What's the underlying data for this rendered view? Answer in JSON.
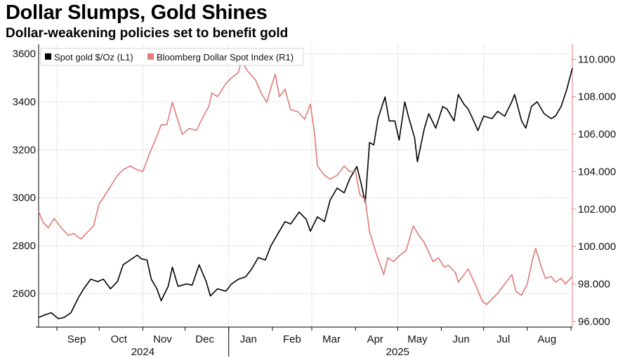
{
  "header": {
    "title": "Dollar Slumps, Gold Shines",
    "subtitle": "Dollar-weakening policies set to benefit gold"
  },
  "chart_data": {
    "type": "line",
    "title": "Dollar Slumps, Gold Shines",
    "subtitle": "Dollar-weakening policies set to benefit gold",
    "grid": true,
    "legend_placement": "top-left",
    "x_axis": {
      "months": [
        {
          "label": "Sep",
          "date": "2024-09-15"
        },
        {
          "label": "Oct",
          "date": "2024-10-15"
        },
        {
          "label": "Nov",
          "date": "2024-11-15"
        },
        {
          "label": "Dec",
          "date": "2024-12-15"
        },
        {
          "label": "Jan",
          "date": "2025-01-15"
        },
        {
          "label": "Feb",
          "date": "2025-02-15"
        },
        {
          "label": "Mar",
          "date": "2025-03-15"
        },
        {
          "label": "Apr",
          "date": "2025-04-15"
        },
        {
          "label": "May",
          "date": "2025-05-15"
        },
        {
          "label": "Jun",
          "date": "2025-06-15"
        },
        {
          "label": "Jul",
          "date": "2025-07-15"
        },
        {
          "label": "Aug",
          "date": "2025-08-15"
        }
      ],
      "years": [
        {
          "label": "2024",
          "date": "2024-11-01"
        },
        {
          "label": "2025",
          "date": "2025-05-01"
        }
      ],
      "range": [
        "2024-08-19",
        "2025-09-02"
      ]
    },
    "y_left": {
      "ticks": [
        "2600",
        "2800",
        "3000",
        "3200",
        "3400",
        "3600"
      ],
      "range": [
        2460,
        3640
      ]
    },
    "y_right": {
      "ticks": [
        "96.000",
        "98.000",
        "100.000",
        "102.000",
        "104.000",
        "106.000",
        "108.000",
        "110.000"
      ],
      "range": [
        95.7,
        110.8
      ]
    },
    "series": [
      {
        "name": "Spot gold $/Oz (L1)",
        "axis": "left",
        "color": "#000000",
        "points": [
          [
            "2024-08-19",
            2500
          ],
          [
            "2024-08-23",
            2510
          ],
          [
            "2024-08-28",
            2520
          ],
          [
            "2024-09-02",
            2495
          ],
          [
            "2024-09-06",
            2500
          ],
          [
            "2024-09-11",
            2520
          ],
          [
            "2024-09-16",
            2580
          ],
          [
            "2024-09-20",
            2620
          ],
          [
            "2024-09-25",
            2660
          ],
          [
            "2024-09-30",
            2650
          ],
          [
            "2024-10-04",
            2660
          ],
          [
            "2024-10-09",
            2620
          ],
          [
            "2024-10-14",
            2650
          ],
          [
            "2024-10-18",
            2720
          ],
          [
            "2024-10-23",
            2740
          ],
          [
            "2024-10-28",
            2760
          ],
          [
            "2024-10-31",
            2745
          ],
          [
            "2024-11-04",
            2740
          ],
          [
            "2024-11-07",
            2660
          ],
          [
            "2024-11-11",
            2620
          ],
          [
            "2024-11-14",
            2570
          ],
          [
            "2024-11-19",
            2630
          ],
          [
            "2024-11-22",
            2710
          ],
          [
            "2024-11-26",
            2630
          ],
          [
            "2024-12-02",
            2640
          ],
          [
            "2024-12-06",
            2635
          ],
          [
            "2024-12-11",
            2720
          ],
          [
            "2024-12-16",
            2650
          ],
          [
            "2024-12-19",
            2590
          ],
          [
            "2024-12-24",
            2620
          ],
          [
            "2024-12-30",
            2610
          ],
          [
            "2025-01-03",
            2640
          ],
          [
            "2025-01-08",
            2660
          ],
          [
            "2025-01-13",
            2670
          ],
          [
            "2025-01-17",
            2700
          ],
          [
            "2025-01-22",
            2750
          ],
          [
            "2025-01-27",
            2740
          ],
          [
            "2025-01-31",
            2800
          ],
          [
            "2025-02-04",
            2840
          ],
          [
            "2025-02-10",
            2900
          ],
          [
            "2025-02-14",
            2890
          ],
          [
            "2025-02-20",
            2940
          ],
          [
            "2025-02-25",
            2910
          ],
          [
            "2025-02-28",
            2860
          ],
          [
            "2025-03-05",
            2920
          ],
          [
            "2025-03-10",
            2900
          ],
          [
            "2025-03-14",
            2990
          ],
          [
            "2025-03-19",
            3040
          ],
          [
            "2025-03-24",
            3020
          ],
          [
            "2025-03-28",
            3080
          ],
          [
            "2025-04-02",
            3130
          ],
          [
            "2025-04-05",
            3060
          ],
          [
            "2025-04-08",
            2980
          ],
          [
            "2025-04-11",
            3230
          ],
          [
            "2025-04-14",
            3220
          ],
          [
            "2025-04-17",
            3330
          ],
          [
            "2025-04-22",
            3420
          ],
          [
            "2025-04-25",
            3320
          ],
          [
            "2025-04-29",
            3320
          ],
          [
            "2025-05-02",
            3240
          ],
          [
            "2025-05-06",
            3400
          ],
          [
            "2025-05-09",
            3330
          ],
          [
            "2025-05-13",
            3250
          ],
          [
            "2025-05-15",
            3150
          ],
          [
            "2025-05-20",
            3290
          ],
          [
            "2025-05-23",
            3350
          ],
          [
            "2025-05-28",
            3290
          ],
          [
            "2025-06-02",
            3380
          ],
          [
            "2025-06-05",
            3370
          ],
          [
            "2025-06-10",
            3320
          ],
          [
            "2025-06-13",
            3430
          ],
          [
            "2025-06-17",
            3390
          ],
          [
            "2025-06-20",
            3370
          ],
          [
            "2025-06-24",
            3320
          ],
          [
            "2025-06-27",
            3280
          ],
          [
            "2025-07-01",
            3340
          ],
          [
            "2025-07-07",
            3330
          ],
          [
            "2025-07-11",
            3360
          ],
          [
            "2025-07-16",
            3340
          ],
          [
            "2025-07-21",
            3400
          ],
          [
            "2025-07-23",
            3430
          ],
          [
            "2025-07-28",
            3320
          ],
          [
            "2025-07-31",
            3290
          ],
          [
            "2025-08-04",
            3380
          ],
          [
            "2025-08-08",
            3400
          ],
          [
            "2025-08-13",
            3350
          ],
          [
            "2025-08-18",
            3330
          ],
          [
            "2025-08-21",
            3340
          ],
          [
            "2025-08-25",
            3380
          ],
          [
            "2025-08-29",
            3450
          ],
          [
            "2025-09-02",
            3540
          ]
        ]
      },
      {
        "name": "Bloomberg Dollar Spot Index (R1)",
        "axis": "right",
        "color": "#e07a78",
        "points": [
          [
            "2024-08-19",
            101.9
          ],
          [
            "2024-08-22",
            101.3
          ],
          [
            "2024-08-26",
            101.0
          ],
          [
            "2024-08-30",
            101.5
          ],
          [
            "2024-09-04",
            101.0
          ],
          [
            "2024-09-09",
            100.6
          ],
          [
            "2024-09-13",
            100.7
          ],
          [
            "2024-09-18",
            100.4
          ],
          [
            "2024-09-23",
            100.8
          ],
          [
            "2024-09-27",
            101.1
          ],
          [
            "2024-10-01",
            102.3
          ],
          [
            "2024-10-04",
            102.6
          ],
          [
            "2024-10-09",
            103.2
          ],
          [
            "2024-10-14",
            103.8
          ],
          [
            "2024-10-18",
            104.1
          ],
          [
            "2024-10-23",
            104.3
          ],
          [
            "2024-10-28",
            104.1
          ],
          [
            "2024-11-01",
            104.0
          ],
          [
            "2024-11-06",
            105.0
          ],
          [
            "2024-11-11",
            105.9
          ],
          [
            "2024-11-14",
            106.5
          ],
          [
            "2024-11-18",
            106.5
          ],
          [
            "2024-11-22",
            107.7
          ],
          [
            "2024-11-26",
            106.7
          ],
          [
            "2024-11-29",
            106.0
          ],
          [
            "2024-12-04",
            106.3
          ],
          [
            "2024-12-09",
            106.2
          ],
          [
            "2024-12-13",
            106.8
          ],
          [
            "2024-12-18",
            107.5
          ],
          [
            "2024-12-20",
            108.2
          ],
          [
            "2024-12-24",
            108.0
          ],
          [
            "2024-12-30",
            108.7
          ],
          [
            "2025-01-03",
            109.0
          ],
          [
            "2025-01-08",
            109.3
          ],
          [
            "2025-01-10",
            110.0
          ],
          [
            "2025-01-14",
            109.4
          ],
          [
            "2025-01-20",
            108.9
          ],
          [
            "2025-01-24",
            108.2
          ],
          [
            "2025-01-28",
            107.7
          ],
          [
            "2025-01-31",
            108.5
          ],
          [
            "2025-02-03",
            109.2
          ],
          [
            "2025-02-06",
            108.0
          ],
          [
            "2025-02-10",
            108.4
          ],
          [
            "2025-02-14",
            107.3
          ],
          [
            "2025-02-19",
            107.2
          ],
          [
            "2025-02-24",
            106.8
          ],
          [
            "2025-02-28",
            107.6
          ],
          [
            "2025-03-03",
            106.0
          ],
          [
            "2025-03-05",
            104.3
          ],
          [
            "2025-03-10",
            103.8
          ],
          [
            "2025-03-14",
            103.6
          ],
          [
            "2025-03-19",
            103.8
          ],
          [
            "2025-03-24",
            104.3
          ],
          [
            "2025-03-28",
            104.0
          ],
          [
            "2025-04-01",
            104.0
          ],
          [
            "2025-04-04",
            102.8
          ],
          [
            "2025-04-08",
            102.5
          ],
          [
            "2025-04-11",
            100.8
          ],
          [
            "2025-04-15",
            99.8
          ],
          [
            "2025-04-21",
            98.5
          ],
          [
            "2025-04-24",
            99.4
          ],
          [
            "2025-04-28",
            99.2
          ],
          [
            "2025-05-02",
            99.5
          ],
          [
            "2025-05-07",
            99.8
          ],
          [
            "2025-05-12",
            101.1
          ],
          [
            "2025-05-16",
            100.6
          ],
          [
            "2025-05-20",
            100.2
          ],
          [
            "2025-05-26",
            99.2
          ],
          [
            "2025-05-30",
            99.4
          ],
          [
            "2025-06-03",
            98.9
          ],
          [
            "2025-06-06",
            99.0
          ],
          [
            "2025-06-11",
            98.6
          ],
          [
            "2025-06-13",
            98.1
          ],
          [
            "2025-06-17",
            98.5
          ],
          [
            "2025-06-20",
            98.8
          ],
          [
            "2025-06-25",
            98.0
          ],
          [
            "2025-06-30",
            97.1
          ],
          [
            "2025-07-03",
            96.9
          ],
          [
            "2025-07-07",
            97.2
          ],
          [
            "2025-07-11",
            97.5
          ],
          [
            "2025-07-16",
            98.0
          ],
          [
            "2025-07-21",
            98.5
          ],
          [
            "2025-07-24",
            97.6
          ],
          [
            "2025-07-28",
            97.4
          ],
          [
            "2025-08-01",
            98.0
          ],
          [
            "2025-08-05",
            99.4
          ],
          [
            "2025-08-07",
            99.9
          ],
          [
            "2025-08-11",
            98.9
          ],
          [
            "2025-08-14",
            98.3
          ],
          [
            "2025-08-18",
            98.4
          ],
          [
            "2025-08-21",
            98.1
          ],
          [
            "2025-08-25",
            98.3
          ],
          [
            "2025-08-28",
            98.0
          ],
          [
            "2025-09-02",
            98.4
          ]
        ]
      }
    ]
  }
}
